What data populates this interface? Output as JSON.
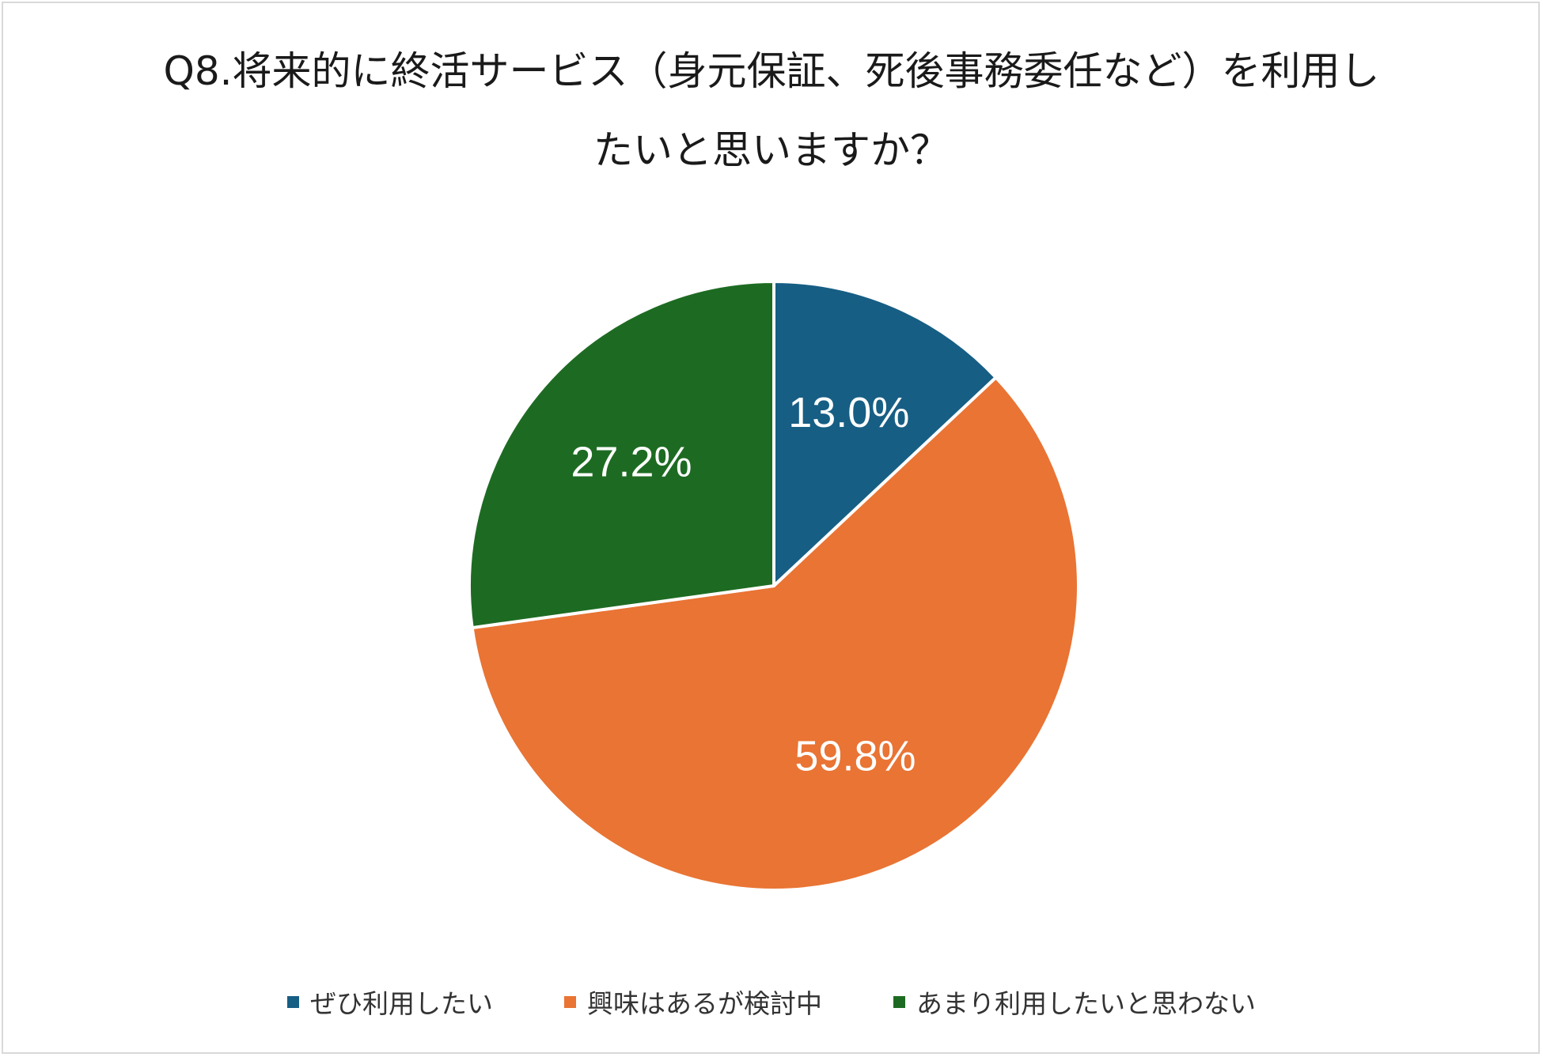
{
  "chart_data": {
    "type": "pie",
    "title": "Q8.将来的に終活サービス（身元保証、死後事務委任など）を利用したいと思いますか？",
    "categories": [
      "ぜひ利用したい",
      "興味はあるが検討中",
      "あまり利用したいと思わない"
    ],
    "values": [
      13.0,
      59.8,
      27.2
    ],
    "labels": [
      "13.0%",
      "59.8%",
      "27.2%"
    ],
    "colors": [
      "#175e84",
      "#e97434",
      "#1d6b22"
    ],
    "legend_position": "bottom"
  }
}
